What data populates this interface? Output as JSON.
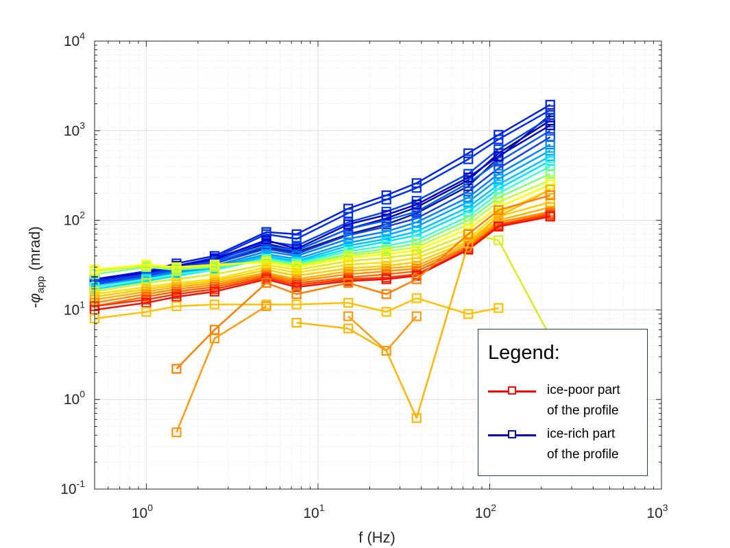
{
  "chart_data": {
    "type": "line",
    "xlabel": "f (Hz)",
    "ylabel_prefix": "-",
    "ylabel_symbol": "φ",
    "ylabel_sub": "app",
    "ylabel_unit": "(mrad)",
    "xscale": "log",
    "yscale": "log",
    "xlim": [
      0.5,
      1000
    ],
    "ylim": [
      0.1,
      10000
    ],
    "grid": true,
    "marker": "square",
    "x_ticks": [
      {
        "base": "10",
        "exp": "0",
        "value": 1
      },
      {
        "base": "10",
        "exp": "1",
        "value": 10
      },
      {
        "base": "10",
        "exp": "2",
        "value": 100
      },
      {
        "base": "10",
        "exp": "3",
        "value": 1000
      }
    ],
    "y_ticks": [
      {
        "base": "10",
        "exp": "-1",
        "value": 0.1
      },
      {
        "base": "10",
        "exp": "0",
        "value": 1
      },
      {
        "base": "10",
        "exp": "1",
        "value": 10
      },
      {
        "base": "10",
        "exp": "2",
        "value": 100
      },
      {
        "base": "10",
        "exp": "3",
        "value": 1000
      },
      {
        "base": "10",
        "exp": "4",
        "value": 10000
      }
    ],
    "x": [
      0.5,
      1,
      1.5,
      2.5,
      5,
      7.5,
      15,
      25,
      37.5,
      75,
      112.5,
      225
    ],
    "series": [
      {
        "color": "#0a1a8c",
        "values": [
          20,
          24,
          29,
          34,
          50,
          44,
          70,
          90,
          120,
          240,
          500,
          1500
        ]
      },
      {
        "color": "#0000a0",
        "values": [
          21,
          25,
          30,
          36,
          55,
          46,
          80,
          105,
          140,
          280,
          560,
          1300
        ]
      },
      {
        "color": "#0022dd",
        "values": [
          22,
          27,
          33,
          40,
          74,
          70,
          135,
          190,
          260,
          560,
          900,
          1950
        ]
      },
      {
        "color": "#0030e8",
        "values": [
          21,
          26,
          31,
          38,
          70,
          62,
          120,
          170,
          230,
          480,
          800,
          1700
        ]
      },
      {
        "color": "#0044ee",
        "values": [
          20,
          25,
          30,
          35,
          58,
          52,
          95,
          125,
          165,
          330,
          620,
          1400
        ]
      },
      {
        "color": "#0060ff",
        "values": [
          19,
          24,
          28,
          34,
          52,
          46,
          80,
          100,
          125,
          260,
          450,
          1000
        ]
      },
      {
        "color": "#0000c8",
        "values": [
          22,
          26,
          31,
          37,
          60,
          48,
          90,
          115,
          150,
          300,
          520,
          1150
        ]
      },
      {
        "color": "#1540e0",
        "values": [
          20,
          24,
          29,
          33,
          48,
          42,
          68,
          85,
          105,
          210,
          380,
          850
        ]
      },
      {
        "color": "#0080ff",
        "values": [
          18,
          23,
          27,
          31,
          45,
          40,
          62,
          75,
          95,
          180,
          330,
          700
        ]
      },
      {
        "color": "#00a0ff",
        "values": [
          18,
          22,
          26,
          30,
          42,
          37,
          56,
          68,
          85,
          160,
          290,
          600
        ]
      },
      {
        "color": "#00c0ff",
        "values": [
          17,
          21,
          25,
          29,
          40,
          35,
          52,
          62,
          75,
          140,
          250,
          520
        ]
      },
      {
        "color": "#00e0ff",
        "values": [
          17,
          21,
          24,
          28,
          38,
          34,
          48,
          58,
          68,
          125,
          225,
          460
        ]
      },
      {
        "color": "#40ffd0",
        "values": [
          18,
          22,
          25,
          28,
          37,
          33,
          45,
          52,
          60,
          110,
          200,
          400
        ]
      },
      {
        "color": "#80ff80",
        "values": [
          25,
          30,
          28,
          30,
          36,
          32,
          42,
          48,
          55,
          100,
          180,
          330
        ]
      },
      {
        "color": "#c0ff40",
        "values": [
          27,
          31,
          29,
          31,
          35,
          31,
          40,
          45,
          50,
          90,
          160,
          280
        ]
      },
      {
        "color": "#ffff00",
        "values": [
          28,
          32,
          30,
          32,
          34,
          30,
          38,
          42,
          46,
          80,
          140,
          250
        ]
      },
      {
        "color": "#d8ec20",
        "values": [
          16,
          20,
          22,
          25,
          32,
          28,
          35,
          38,
          42,
          70,
          60,
          5
        ]
      },
      {
        "color": "#ffe000",
        "values": [
          15,
          18,
          20,
          22,
          30,
          26,
          32,
          34,
          38,
          62,
          120,
          220
        ]
      },
      {
        "color": "#ffcc00",
        "values": [
          14,
          17,
          19,
          21,
          28,
          24,
          29,
          31,
          34,
          58,
          110,
          160
        ]
      },
      {
        "color": "#ffb000",
        "values": [
          13,
          16,
          18,
          20,
          26,
          22,
          27,
          29,
          31,
          55,
          100,
          140
        ]
      },
      {
        "color": "#ff9000",
        "values": [
          12,
          15,
          17,
          19,
          25,
          21,
          25,
          27,
          29,
          52,
          95,
          125
        ]
      },
      {
        "color": "#ff6a00",
        "values": [
          11,
          14,
          16,
          18,
          24,
          20,
          23,
          25,
          27,
          50,
          90,
          120
        ]
      },
      {
        "color": "#ff3a00",
        "values": [
          11,
          13,
          15,
          17,
          23,
          19,
          22,
          23,
          25,
          48,
          88,
          115
        ]
      },
      {
        "color": "#f01000",
        "values": [
          10,
          12,
          14,
          16,
          22,
          18,
          21,
          22,
          24,
          47,
          85,
          110
        ]
      },
      {
        "color": "#ffc000",
        "values": [
          8,
          9.5,
          11,
          11.5,
          11.5,
          11.5,
          12,
          9.5,
          13.5,
          9,
          10.5,
          null
        ]
      },
      {
        "color": "#ffb400",
        "values": [
          null,
          null,
          null,
          null,
          null,
          7.2,
          6.2,
          3.5,
          0.62,
          55,
          110,
          220
        ]
      },
      {
        "color": "#ff9a10",
        "values": [
          null,
          null,
          0.43,
          4.8,
          11,
          null,
          8.5,
          3.5,
          8.5,
          null,
          null,
          null
        ]
      },
      {
        "color": "#ff8000",
        "values": [
          null,
          null,
          2.2,
          6,
          20,
          15,
          20,
          15,
          22,
          70,
          130,
          190
        ]
      }
    ]
  },
  "legend": {
    "title": "Legend:",
    "items": [
      {
        "label_line1": "ice-poor part",
        "label_line2": "of the profile",
        "color": "#ff0000"
      },
      {
        "label_line1": "ice-rich part",
        "label_line2": "of the profile",
        "color": "#0000b0"
      }
    ]
  }
}
